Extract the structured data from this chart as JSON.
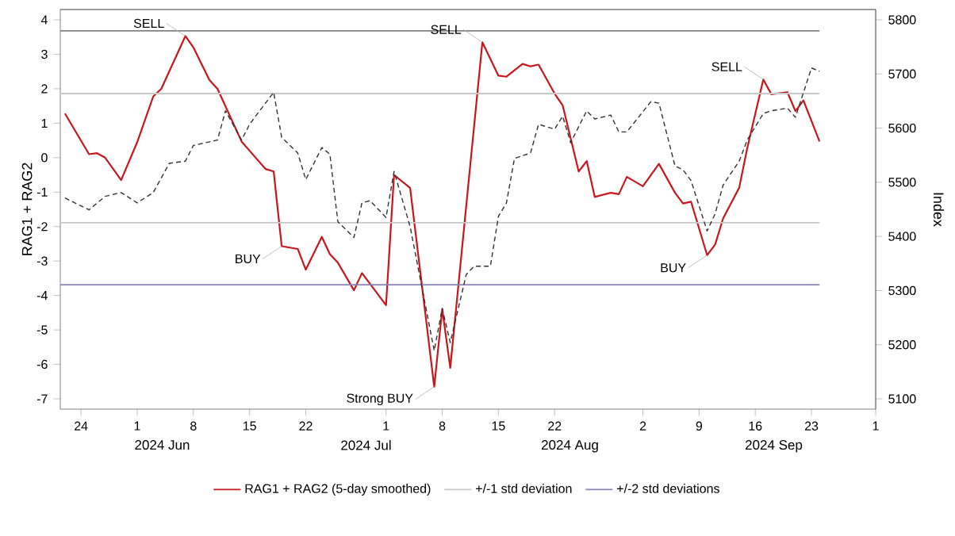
{
  "chart_data": {
    "type": "line",
    "ylabel": "RAG1 + RAG2",
    "y2label": "Index",
    "xlim": [
      "2024-06-21T10:00",
      "2024-10-01"
    ],
    "xticks": [
      {
        "value": "2024-06-24",
        "label": "24"
      },
      {
        "value": "2024-07-01",
        "label": "1"
      },
      {
        "value": "2024-07-08",
        "label": "8"
      },
      {
        "value": "2024-07-15",
        "label": "15"
      },
      {
        "value": "2024-07-22",
        "label": "22"
      },
      {
        "value": "2024-08-01",
        "label": "1"
      },
      {
        "value": "2024-08-08",
        "label": "8"
      },
      {
        "value": "2024-08-15",
        "label": "15"
      },
      {
        "value": "2024-08-22",
        "label": "22"
      },
      {
        "value": "2024-09-02",
        "label": "2"
      },
      {
        "value": "2024-09-09",
        "label": "9"
      },
      {
        "value": "2024-09-16",
        "label": "16"
      },
      {
        "value": "2024-09-23",
        "label": "23"
      },
      {
        "value": "2024-10-01",
        "label": "1"
      }
    ],
    "ylim": [
      -7.3,
      4.3
    ],
    "yticks": [
      -7,
      -6,
      -5,
      -4,
      -3,
      -2,
      -1,
      0,
      1,
      2,
      3,
      4
    ],
    "y2lim": [
      5081,
      5819
    ],
    "y2ticks": [
      5100,
      5200,
      5300,
      5400,
      5500,
      5600,
      5700,
      5800
    ],
    "legend": "bottom",
    "grid": false,
    "marker": "none",
    "series": [
      {
        "name": "RAG1 + RAG2 (5-day smoothed)",
        "color": "#c8161d",
        "line_style": "solid",
        "x": [
          "2024-06-22",
          "2024-06-25",
          "2024-06-26",
          "2024-06-27",
          "2024-06-29",
          "2024-07-01",
          "2024-07-03",
          "2024-07-04",
          "2024-07-07",
          "2024-07-08",
          "2024-07-10",
          "2024-07-11",
          "2024-07-14",
          "2024-07-15",
          "2024-07-17",
          "2024-07-18",
          "2024-07-19",
          "2024-07-21",
          "2024-07-22",
          "2024-07-24",
          "2024-07-25",
          "2024-07-26",
          "2024-07-28",
          "2024-07-29",
          "2024-08-01",
          "2024-08-02",
          "2024-08-04",
          "2024-08-07",
          "2024-08-08",
          "2024-08-09",
          "2024-08-13",
          "2024-08-15",
          "2024-08-16",
          "2024-08-18",
          "2024-08-19",
          "2024-08-20",
          "2024-08-22",
          "2024-08-23",
          "2024-08-25",
          "2024-08-26",
          "2024-08-27",
          "2024-08-29",
          "2024-08-30",
          "2024-08-31",
          "2024-09-02",
          "2024-09-04",
          "2024-09-06",
          "2024-09-07",
          "2024-09-08",
          "2024-09-10",
          "2024-09-11",
          "2024-09-12",
          "2024-09-14",
          "2024-09-15",
          "2024-09-17",
          "2024-09-18",
          "2024-09-20",
          "2024-09-21",
          "2024-09-22",
          "2024-09-24"
        ],
        "values": [
          1.28,
          0.1,
          0.13,
          0.0,
          -0.65,
          0.45,
          1.78,
          2.0,
          3.53,
          3.2,
          2.25,
          2.0,
          0.47,
          0.2,
          -0.33,
          -0.4,
          -2.57,
          -2.65,
          -3.25,
          -2.3,
          -2.8,
          -3.05,
          -3.85,
          -3.35,
          -4.28,
          -0.5,
          -0.88,
          -6.65,
          -4.4,
          -6.1,
          3.35,
          2.38,
          2.35,
          2.72,
          2.65,
          2.7,
          1.86,
          1.52,
          -0.4,
          -0.1,
          -1.14,
          -1.02,
          -1.06,
          -0.56,
          -0.83,
          -0.18,
          -1.02,
          -1.33,
          -1.28,
          -2.83,
          -2.52,
          -1.76,
          -0.87,
          0.28,
          2.27,
          1.84,
          1.9,
          1.35,
          1.66,
          0.47
        ]
      },
      {
        "color": "#333333",
        "line_style": "dashed",
        "axis": "y2",
        "x": [
          "2024-06-22",
          "2024-06-25",
          "2024-06-27",
          "2024-06-29",
          "2024-07-01",
          "2024-07-03",
          "2024-07-05",
          "2024-07-07",
          "2024-07-08",
          "2024-07-11",
          "2024-07-12",
          "2024-07-14",
          "2024-07-15",
          "2024-07-16",
          "2024-07-18",
          "2024-07-19",
          "2024-07-21",
          "2024-07-22",
          "2024-07-24",
          "2024-07-25",
          "2024-07-26",
          "2024-07-28",
          "2024-07-29",
          "2024-07-30",
          "2024-08-01",
          "2024-08-02",
          "2024-08-04",
          "2024-08-07",
          "2024-08-08",
          "2024-08-09",
          "2024-08-11",
          "2024-08-12",
          "2024-08-14",
          "2024-08-15",
          "2024-08-16",
          "2024-08-17",
          "2024-08-19",
          "2024-08-20",
          "2024-08-22",
          "2024-08-23",
          "2024-08-24",
          "2024-08-26",
          "2024-08-27",
          "2024-08-29",
          "2024-08-30",
          "2024-08-31",
          "2024-09-03",
          "2024-09-04",
          "2024-09-06",
          "2024-09-07",
          "2024-09-08",
          "2024-09-10",
          "2024-09-11",
          "2024-09-12",
          "2024-09-14",
          "2024-09-15",
          "2024-09-17",
          "2024-09-18",
          "2024-09-20",
          "2024-09-21",
          "2024-09-23",
          "2024-09-24"
        ],
        "values": [
          5471,
          5449,
          5474,
          5481,
          5462,
          5481,
          5535,
          5539,
          5568,
          5578,
          5632,
          5578,
          5607,
          5627,
          5666,
          5583,
          5554,
          5505,
          5564,
          5552,
          5427,
          5398,
          5462,
          5466,
          5435,
          5520,
          5418,
          5189,
          5267,
          5204,
          5330,
          5345,
          5345,
          5437,
          5462,
          5544,
          5554,
          5607,
          5598,
          5622,
          5573,
          5632,
          5617,
          5624,
          5593,
          5593,
          5649,
          5646,
          5530,
          5523,
          5503,
          5410,
          5442,
          5495,
          5539,
          5578,
          5627,
          5632,
          5637,
          5620,
          5711,
          5705
        ]
      }
    ],
    "ref_lines": [
      {
        "axis": "y",
        "value": 1.86,
        "label": "+/-1 std deviation",
        "color": "#c8c8c8"
      },
      {
        "axis": "y",
        "value": -1.89,
        "color": "#c8c8c8"
      },
      {
        "axis": "y",
        "value": 3.68,
        "color": "#808080"
      },
      {
        "axis": "y",
        "value": -3.69,
        "label": "+/-2 std deviations",
        "color": "#8c82b4"
      }
    ],
    "annotations": [
      {
        "text": "SELL",
        "x": "2024-07-07",
        "y": 3.53
      },
      {
        "text": "BUY",
        "x": "2024-07-19",
        "y": -2.57
      },
      {
        "text": "Strong BUY",
        "x": "2024-08-07",
        "y": -6.65
      },
      {
        "text": "SELL",
        "x": "2024-08-13",
        "y": 3.35
      },
      {
        "text": "BUY",
        "x": "2024-09-10",
        "y": -2.83
      },
      {
        "text": "SELL",
        "x": "2024-09-17",
        "y": 2.27
      },
      "2024 Jun",
      "2024 Jul",
      "2024 Aug",
      "2024 Sep"
    ]
  }
}
